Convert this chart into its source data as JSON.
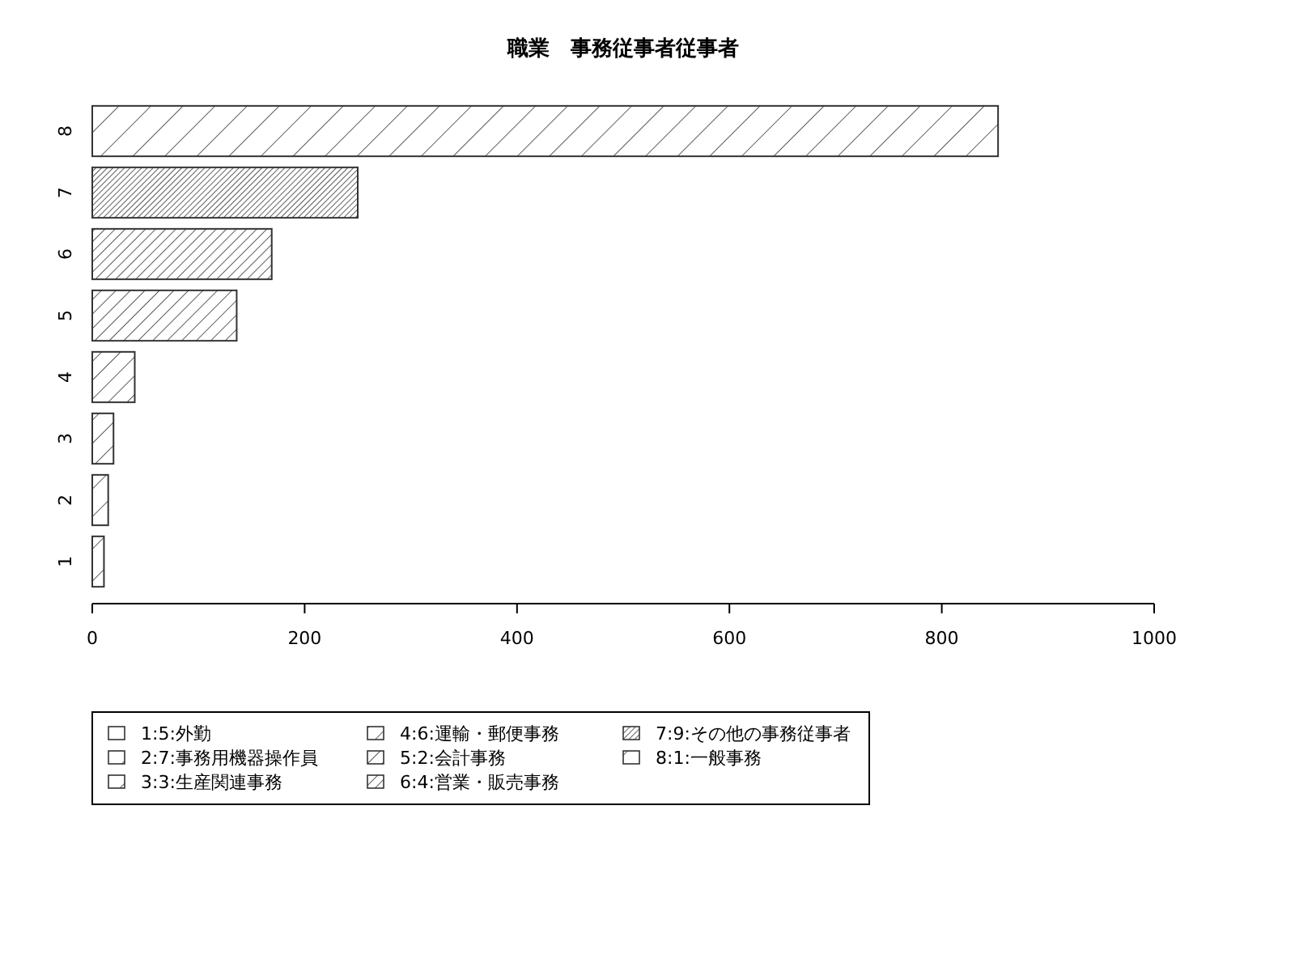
{
  "chart_data": {
    "type": "bar",
    "orientation": "horizontal",
    "title": "職業　事務従事者従事者",
    "categories": [
      "8",
      "7",
      "6",
      "5",
      "4",
      "3",
      "2",
      "1"
    ],
    "series": [
      {
        "name": "1:5:外勤",
        "color": "#333333",
        "values": [
          null,
          null,
          null,
          null,
          null,
          null,
          null,
          11
        ]
      },
      {
        "name": "2:7:事務用機器操作員",
        "color": "#333333",
        "values": [
          null,
          null,
          null,
          null,
          null,
          null,
          15,
          null
        ]
      },
      {
        "name": "3:3:生産関連事務",
        "color": "#333333",
        "values": [
          null,
          null,
          null,
          null,
          null,
          20,
          null,
          null
        ]
      },
      {
        "name": "4:6:運輸・郵便事務",
        "color": "#333333",
        "values": [
          null,
          null,
          null,
          null,
          40,
          null,
          null,
          null
        ]
      },
      {
        "name": "5:2:会計事務",
        "color": "#333333",
        "values": [
          null,
          null,
          null,
          136,
          null,
          null,
          null,
          null
        ]
      },
      {
        "name": "6:4:営業・販売事務",
        "color": "#333333",
        "values": [
          null,
          null,
          169,
          null,
          null,
          null,
          null,
          null
        ]
      },
      {
        "name": "7:9:その他の事務従事者",
        "color": "#333333",
        "values": [
          null,
          250,
          null,
          null,
          null,
          null,
          null,
          null
        ]
      },
      {
        "name": "8:1:一般事務",
        "color": "#333333",
        "values": [
          853,
          null,
          null,
          null,
          null,
          null,
          null,
          null
        ]
      }
    ],
    "xlim": [
      0,
      1000
    ],
    "xticks": [
      0,
      200,
      400,
      600,
      800,
      1000
    ],
    "legend": "bottom"
  }
}
